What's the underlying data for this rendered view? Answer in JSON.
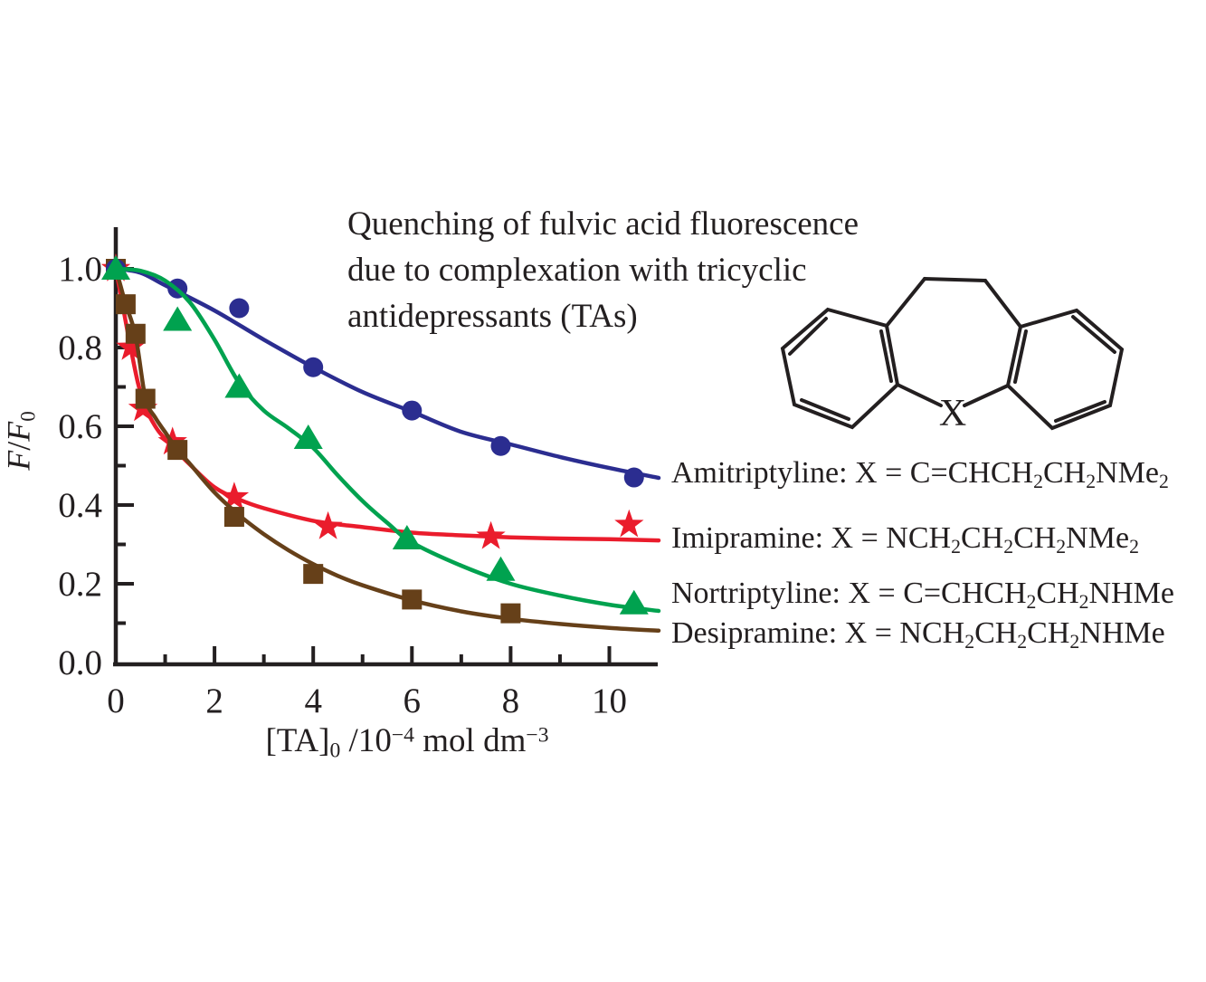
{
  "title": {
    "lines": [
      "Quenching of fulvic acid fluorescence",
      "due to complexation with tricyclic",
      "antidepressants (TAs)"
    ]
  },
  "structure": {
    "x_label": "X"
  },
  "axis": {
    "ylabel_segments": [
      {
        "t": "F",
        "i": true
      },
      {
        "t": "/"
      },
      {
        "t": "F",
        "i": true
      },
      {
        "t": "0",
        "sub": true
      }
    ],
    "xlabel_segments": [
      {
        "t": "[TA]"
      },
      {
        "t": "0",
        "sub": true
      },
      {
        "t": " /10"
      },
      {
        "t": "−4",
        "sup": true
      },
      {
        "t": " mol dm"
      },
      {
        "t": "−3",
        "sup": true
      }
    ]
  },
  "molecule_labels": [
    {
      "name": "Amitriptyline",
      "segments": [
        {
          "t": "Amitriptyline: X = C=CHCH"
        },
        {
          "t": "2",
          "sub": true
        },
        {
          "t": "CH"
        },
        {
          "t": "2",
          "sub": true
        },
        {
          "t": "NMe"
        },
        {
          "t": "2",
          "sub": true
        }
      ]
    },
    {
      "name": "Imipramine",
      "segments": [
        {
          "t": "Imipramine: X = NCH"
        },
        {
          "t": "2",
          "sub": true
        },
        {
          "t": "CH"
        },
        {
          "t": "2",
          "sub": true
        },
        {
          "t": "CH"
        },
        {
          "t": "2",
          "sub": true
        },
        {
          "t": "NMe"
        },
        {
          "t": "2",
          "sub": true
        }
      ]
    },
    {
      "name": "Nortriptyline",
      "segments": [
        {
          "t": "Nortriptyline: X = C=CHCH"
        },
        {
          "t": "2",
          "sub": true
        },
        {
          "t": "CH"
        },
        {
          "t": "2",
          "sub": true
        },
        {
          "t": "NHMe"
        }
      ]
    },
    {
      "name": "Desipramine",
      "segments": [
        {
          "t": "Desipramine: X = NCH"
        },
        {
          "t": "2",
          "sub": true
        },
        {
          "t": "CH"
        },
        {
          "t": "2",
          "sub": true
        },
        {
          "t": "CH"
        },
        {
          "t": "2",
          "sub": true
        },
        {
          "t": "NHMe"
        }
      ]
    }
  ],
  "chart_data": {
    "type": "scatter",
    "title": "Quenching of fulvic acid fluorescence due to complexation with tricyclic antidepressants (TAs)",
    "xlabel": "[TA]0 /10^-4 mol dm^-3",
    "ylabel": "F/F0",
    "xlim": [
      0,
      11
    ],
    "ylim": [
      0,
      1.09
    ],
    "grid": false,
    "ink_color": "#231f20",
    "x_ticks": {
      "labeled": [
        {
          "v": 0,
          "label": "0"
        },
        {
          "v": 2,
          "label": "2"
        },
        {
          "v": 4,
          "label": "4"
        },
        {
          "v": 6,
          "label": "6"
        },
        {
          "v": 8,
          "label": "8"
        },
        {
          "v": 10,
          "label": "10"
        }
      ],
      "major": [
        2,
        4,
        6,
        8,
        10
      ],
      "minor": [
        1,
        3,
        5,
        7,
        9
      ]
    },
    "y_ticks": {
      "labeled": [
        {
          "v": 0,
          "label": "0.0"
        },
        {
          "v": 0.2,
          "label": "0.2"
        },
        {
          "v": 0.4,
          "label": "0.4"
        },
        {
          "v": 0.6,
          "label": "0.6"
        },
        {
          "v": 0.8,
          "label": "0.8"
        },
        {
          "v": 1.0,
          "label": "1.0"
        }
      ],
      "major": [
        0.2,
        0.4,
        0.6,
        0.8,
        1.0
      ],
      "minor": [
        0.1,
        0.3,
        0.5,
        0.7,
        0.9
      ]
    },
    "series": [
      {
        "name": "Imipramine",
        "marker": "star",
        "color": "#ea1c2c",
        "points": [
          [
            0,
            1.0
          ],
          [
            0.3,
            0.8
          ],
          [
            0.55,
            0.645
          ],
          [
            1.15,
            0.56
          ],
          [
            2.4,
            0.42
          ],
          [
            4.3,
            0.345
          ],
          [
            7.6,
            0.32
          ],
          [
            10.4,
            0.35
          ]
        ],
        "curve": [
          [
            0,
            1.0
          ],
          [
            0.15,
            0.9
          ],
          [
            0.3,
            0.8
          ],
          [
            0.45,
            0.71
          ],
          [
            0.6,
            0.648
          ],
          [
            0.8,
            0.6
          ],
          [
            1,
            0.568
          ],
          [
            1.5,
            0.503
          ],
          [
            2,
            0.445
          ],
          [
            2.5,
            0.414
          ],
          [
            3,
            0.392
          ],
          [
            4,
            0.36
          ],
          [
            5,
            0.344
          ],
          [
            6,
            0.33
          ],
          [
            7,
            0.323
          ],
          [
            8,
            0.318
          ],
          [
            9,
            0.315
          ],
          [
            10,
            0.313
          ],
          [
            11,
            0.31
          ]
        ]
      },
      {
        "name": "Desipramine",
        "marker": "square",
        "color": "#664019",
        "points": [
          [
            0,
            1.0
          ],
          [
            0.2,
            0.91
          ],
          [
            0.4,
            0.835
          ],
          [
            0.6,
            0.67
          ],
          [
            1.25,
            0.54
          ],
          [
            2.4,
            0.37
          ],
          [
            4,
            0.225
          ],
          [
            6,
            0.16
          ],
          [
            8,
            0.125
          ]
        ],
        "curve": [
          [
            0,
            1.0
          ],
          [
            0.1,
            0.955
          ],
          [
            0.2,
            0.91
          ],
          [
            0.4,
            0.83
          ],
          [
            0.6,
            0.672
          ],
          [
            0.8,
            0.622
          ],
          [
            1,
            0.585
          ],
          [
            1.25,
            0.54
          ],
          [
            1.5,
            0.505
          ],
          [
            2,
            0.432
          ],
          [
            2.5,
            0.374
          ],
          [
            3,
            0.326
          ],
          [
            3.5,
            0.285
          ],
          [
            4,
            0.25
          ],
          [
            4.5,
            0.22
          ],
          [
            5,
            0.196
          ],
          [
            6,
            0.158
          ],
          [
            7,
            0.13
          ],
          [
            8,
            0.111
          ],
          [
            9,
            0.098
          ],
          [
            10,
            0.088
          ],
          [
            11,
            0.081
          ]
        ]
      },
      {
        "name": "Amitriptyline",
        "marker": "circle",
        "color": "#2b2d90",
        "points": [
          [
            0,
            1.0
          ],
          [
            1.25,
            0.95
          ],
          [
            2.5,
            0.9
          ],
          [
            4,
            0.75
          ],
          [
            6,
            0.64
          ],
          [
            7.8,
            0.55
          ],
          [
            10.5,
            0.47
          ]
        ],
        "curve": [
          [
            0,
            1.0
          ],
          [
            0.5,
            0.99
          ],
          [
            1,
            0.958
          ],
          [
            2,
            0.894
          ],
          [
            3,
            0.82
          ],
          [
            4,
            0.75
          ],
          [
            5,
            0.687
          ],
          [
            6,
            0.637
          ],
          [
            7,
            0.586
          ],
          [
            8,
            0.554
          ],
          [
            9,
            0.522
          ],
          [
            10,
            0.494
          ],
          [
            11,
            0.469
          ]
        ]
      },
      {
        "name": "Nortriptyline",
        "marker": "triangle",
        "color": "#00a24f",
        "points": [
          [
            0,
            1.0
          ],
          [
            1.25,
            0.87
          ],
          [
            2.5,
            0.7
          ],
          [
            3.9,
            0.57
          ],
          [
            5.9,
            0.315
          ],
          [
            7.8,
            0.235
          ],
          [
            10.5,
            0.15
          ]
        ],
        "curve": [
          [
            0,
            1.0
          ],
          [
            0.5,
            0.995
          ],
          [
            1,
            0.97
          ],
          [
            1.5,
            0.915
          ],
          [
            2,
            0.82
          ],
          [
            2.5,
            0.71
          ],
          [
            3,
            0.64
          ],
          [
            3.5,
            0.595
          ],
          [
            4,
            0.545
          ],
          [
            4.5,
            0.475
          ],
          [
            5,
            0.41
          ],
          [
            5.5,
            0.355
          ],
          [
            6,
            0.305
          ],
          [
            7,
            0.246
          ],
          [
            8,
            0.2
          ],
          [
            9,
            0.17
          ],
          [
            10,
            0.147
          ],
          [
            11,
            0.131
          ]
        ]
      }
    ]
  }
}
